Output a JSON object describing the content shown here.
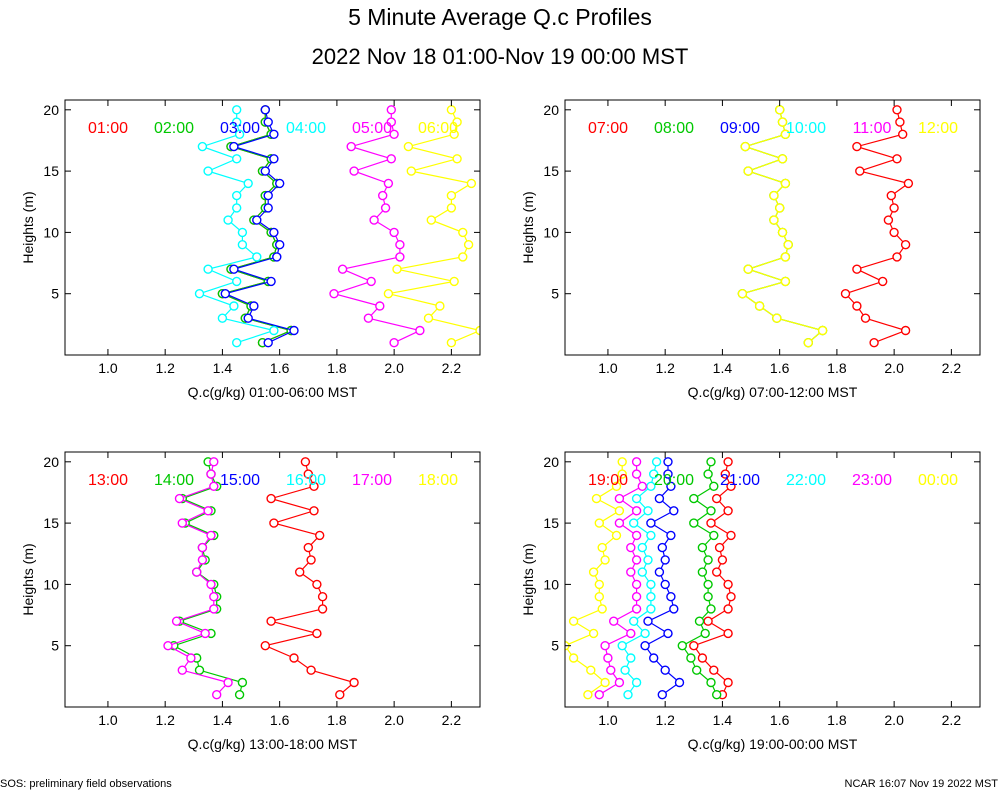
{
  "title": "5 Minute Average Q.c Profiles",
  "subtitle": "2022 Nov 18 01:00-Nov 19 00:00 MST",
  "footer_left": "SOS: preliminary field observations",
  "footer_right": "NCAR 16:07 Nov 19 2022 MST",
  "colors": {
    "red": "#ff0000",
    "green": "#00c800",
    "blue": "#0000ff",
    "cyan": "#00ffff",
    "magenta": "#ff00ff",
    "yellow": "#ffff00",
    "navy": "#00008b",
    "brown": "#a0522d"
  },
  "chart_data": [
    {
      "type": "line",
      "xlabel": "Q.c(g/kg) 01:00-06:00 MST",
      "ylabel": "Heights (m)",
      "xlim": [
        0.85,
        2.3
      ],
      "ylim": [
        0,
        20.8
      ],
      "xticks": [
        "1.0",
        "1.2",
        "1.4",
        "1.6",
        "1.8",
        "2.0",
        "2.2"
      ],
      "yticks": [
        "5",
        "10",
        "15",
        "20"
      ],
      "heights": [
        1,
        2,
        3,
        4,
        5,
        6,
        7,
        8,
        9,
        10,
        11,
        12,
        13,
        14,
        15,
        16,
        17,
        18,
        19,
        20
      ],
      "series": [
        {
          "name": "01:00",
          "color": "red",
          "values": [
            1.54,
            1.64,
            1.48,
            1.5,
            1.4,
            1.56,
            1.43,
            1.58,
            1.59,
            1.57,
            1.51,
            1.55,
            1.55,
            1.59,
            1.54,
            1.57,
            1.43,
            1.57,
            1.55,
            1.55
          ]
        },
        {
          "name": "02:00",
          "color": "green",
          "values": [
            1.54,
            1.64,
            1.48,
            1.5,
            1.4,
            1.56,
            1.43,
            1.58,
            1.59,
            1.57,
            1.51,
            1.55,
            1.55,
            1.59,
            1.54,
            1.57,
            1.43,
            1.57,
            1.55,
            1.55
          ]
        },
        {
          "name": "03:00",
          "color": "blue",
          "values": [
            1.56,
            1.65,
            1.49,
            1.51,
            1.41,
            1.57,
            1.44,
            1.59,
            1.6,
            1.58,
            1.52,
            1.56,
            1.56,
            1.6,
            1.55,
            1.58,
            1.44,
            1.58,
            1.56,
            1.55
          ]
        },
        {
          "name": "04:00",
          "color": "cyan",
          "values": [
            1.45,
            1.58,
            1.4,
            1.44,
            1.32,
            1.45,
            1.35,
            1.52,
            1.47,
            1.47,
            1.42,
            1.45,
            1.45,
            1.49,
            1.35,
            1.45,
            1.33,
            1.46,
            1.45,
            1.45
          ]
        },
        {
          "name": "05:00",
          "color": "magenta",
          "values": [
            2.0,
            2.09,
            1.91,
            1.95,
            1.79,
            1.92,
            1.82,
            2.02,
            2.02,
            2.0,
            1.93,
            1.97,
            1.96,
            1.98,
            1.86,
            1.99,
            1.85,
            2.0,
            1.99,
            1.99
          ]
        },
        {
          "name": "06:00",
          "color": "yellow",
          "values": [
            2.2,
            2.3,
            2.12,
            2.16,
            1.98,
            2.21,
            2.01,
            2.24,
            2.26,
            2.24,
            2.13,
            2.2,
            2.2,
            2.27,
            2.06,
            2.22,
            2.05,
            2.21,
            2.22,
            2.2
          ]
        }
      ]
    },
    {
      "type": "line",
      "xlabel": "Q.c(g/kg) 07:00-12:00 MST",
      "ylabel": "Heights (m)",
      "xlim": [
        0.85,
        2.3
      ],
      "ylim": [
        0,
        20.8
      ],
      "xticks": [
        "1.0",
        "1.2",
        "1.4",
        "1.6",
        "1.8",
        "2.0",
        "2.2"
      ],
      "yticks": [
        "5",
        "10",
        "15",
        "20"
      ],
      "heights": [
        1,
        2,
        3,
        4,
        5,
        6,
        7,
        8,
        9,
        10,
        11,
        12,
        13,
        14,
        15,
        16,
        17,
        18,
        19,
        20
      ],
      "series": [
        {
          "name": "07:00",
          "color": "red",
          "values": [
            1.93,
            2.04,
            1.9,
            1.87,
            1.83,
            1.96,
            1.87,
            2.01,
            2.04,
            2.0,
            1.98,
            2.0,
            1.99,
            2.05,
            1.88,
            2.01,
            1.87,
            2.03,
            2.02,
            2.01
          ]
        },
        {
          "name": "08:00",
          "color": "green",
          "values": [
            1.7,
            1.75,
            1.59,
            1.53,
            1.47,
            1.62,
            1.49,
            1.62,
            1.63,
            1.61,
            1.58,
            1.6,
            1.58,
            1.62,
            1.49,
            1.61,
            1.48,
            1.62,
            1.61,
            1.6
          ]
        },
        {
          "name": "09:00",
          "color": "blue",
          "values": []
        },
        {
          "name": "10:00",
          "color": "cyan",
          "values": []
        },
        {
          "name": "11:00",
          "color": "magenta",
          "values": []
        },
        {
          "name": "12:00",
          "color": "yellow",
          "values": [
            1.7,
            1.75,
            1.59,
            1.53,
            1.47,
            1.62,
            1.49,
            1.62,
            1.63,
            1.61,
            1.58,
            1.6,
            1.58,
            1.62,
            1.49,
            1.61,
            1.48,
            1.62,
            1.61,
            1.6
          ]
        }
      ]
    },
    {
      "type": "line",
      "xlabel": "Q.c(g/kg) 13:00-18:00 MST",
      "ylabel": "Heights (m)",
      "xlim": [
        0.85,
        2.3
      ],
      "ylim": [
        0,
        20.8
      ],
      "xticks": [
        "1.0",
        "1.2",
        "1.4",
        "1.6",
        "1.8",
        "2.0",
        "2.2"
      ],
      "yticks": [
        "5",
        "10",
        "15",
        "20"
      ],
      "heights": [
        1,
        2,
        3,
        4,
        5,
        6,
        7,
        8,
        9,
        10,
        11,
        12,
        13,
        14,
        15,
        16,
        17,
        18,
        19,
        20
      ],
      "series": [
        {
          "name": "13:00",
          "color": "red",
          "values": [
            1.81,
            1.86,
            1.71,
            1.65,
            1.55,
            1.73,
            1.57,
            1.75,
            1.75,
            1.73,
            1.67,
            1.71,
            1.7,
            1.74,
            1.58,
            1.72,
            1.57,
            1.72,
            1.7,
            1.69
          ]
        },
        {
          "name": "14:00",
          "color": "green",
          "values": [
            1.46,
            1.47,
            1.32,
            1.31,
            1.23,
            1.36,
            1.25,
            1.38,
            1.38,
            1.37,
            1.31,
            1.34,
            1.33,
            1.37,
            1.27,
            1.36,
            1.26,
            1.38,
            1.36,
            1.35
          ]
        },
        {
          "name": "15:00",
          "color": "blue",
          "values": []
        },
        {
          "name": "16:00",
          "color": "cyan",
          "values": []
        },
        {
          "name": "17:00",
          "color": "magenta",
          "values": [
            1.38,
            1.42,
            1.26,
            1.29,
            1.21,
            1.34,
            1.24,
            1.37,
            1.37,
            1.36,
            1.31,
            1.33,
            1.33,
            1.36,
            1.26,
            1.35,
            1.25,
            1.37,
            1.36,
            1.37
          ]
        },
        {
          "name": "18:00",
          "color": "yellow",
          "values": []
        }
      ]
    },
    {
      "type": "line",
      "xlabel": "Q.c(g/kg) 19:00-00:00 MST",
      "ylabel": "Heights (m)",
      "xlim": [
        0.85,
        2.3
      ],
      "ylim": [
        0,
        20.8
      ],
      "xticks": [
        "1.0",
        "1.2",
        "1.4",
        "1.6",
        "1.8",
        "2.0",
        "2.2"
      ],
      "yticks": [
        "5",
        "10",
        "15",
        "20"
      ],
      "heights": [
        1,
        2,
        3,
        4,
        5,
        6,
        7,
        8,
        9,
        10,
        11,
        12,
        13,
        14,
        15,
        16,
        17,
        18,
        19,
        20
      ],
      "series": [
        {
          "name": "19:00",
          "color": "red",
          "values": [
            1.4,
            1.42,
            1.37,
            1.33,
            1.3,
            1.42,
            1.35,
            1.42,
            1.43,
            1.42,
            1.38,
            1.4,
            1.39,
            1.43,
            1.36,
            1.42,
            1.38,
            1.43,
            1.41,
            1.42
          ]
        },
        {
          "name": "20:00",
          "color": "green",
          "values": [
            1.38,
            1.36,
            1.31,
            1.29,
            1.26,
            1.34,
            1.32,
            1.36,
            1.35,
            1.35,
            1.33,
            1.35,
            1.33,
            1.37,
            1.3,
            1.36,
            1.3,
            1.37,
            1.35,
            1.36
          ]
        },
        {
          "name": "21:00",
          "color": "blue",
          "values": [
            1.19,
            1.25,
            1.2,
            1.16,
            1.13,
            1.21,
            1.14,
            1.23,
            1.22,
            1.2,
            1.18,
            1.2,
            1.19,
            1.22,
            1.15,
            1.23,
            1.18,
            1.22,
            1.21,
            1.21
          ]
        },
        {
          "name": "22:00",
          "color": "cyan",
          "values": [
            1.07,
            1.1,
            1.06,
            1.08,
            1.05,
            1.13,
            1.09,
            1.15,
            1.15,
            1.15,
            1.12,
            1.14,
            1.12,
            1.15,
            1.09,
            1.14,
            1.1,
            1.15,
            1.16,
            1.17
          ]
        },
        {
          "name": "23:00",
          "color": "magenta",
          "values": [
            0.97,
            1.04,
            1.01,
            1.0,
            0.99,
            1.08,
            1.02,
            1.1,
            1.1,
            1.1,
            1.08,
            1.1,
            1.08,
            1.1,
            1.04,
            1.1,
            1.04,
            1.12,
            1.1,
            1.1
          ]
        },
        {
          "name": "00:00",
          "color": "yellow",
          "values": [
            0.93,
            0.99,
            0.94,
            0.88,
            0.85,
            0.95,
            0.88,
            0.98,
            0.97,
            0.97,
            0.95,
            0.99,
            0.98,
            1.03,
            0.97,
            1.04,
            0.96,
            1.03,
            1.05,
            1.05
          ]
        }
      ]
    }
  ]
}
